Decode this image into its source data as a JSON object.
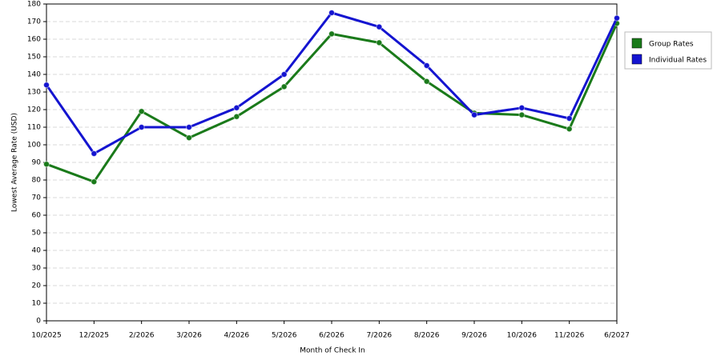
{
  "chart_data": {
    "type": "line",
    "x_label": "Month of Check In",
    "y_label": "Lowest Average Rate (USD)",
    "categories": [
      "10/2025",
      "12/2025",
      "2/2026",
      "3/2026",
      "4/2026",
      "5/2026",
      "6/2026",
      "7/2026",
      "8/2026",
      "9/2026",
      "10/2026",
      "11/2026",
      "6/2027"
    ],
    "series": [
      {
        "name": "Group Rates",
        "color": "#1a7a1a",
        "values": [
          89,
          79,
          119,
          104,
          116,
          133,
          163,
          158,
          136,
          118,
          117,
          109,
          169
        ]
      },
      {
        "name": "Individual Rates",
        "color": "#1414d0",
        "values": [
          134,
          95,
          110,
          110,
          121,
          140,
          175,
          167,
          145,
          117,
          121,
          115,
          172
        ]
      }
    ],
    "ylim": [
      0,
      180
    ],
    "yticks": [
      0,
      10,
      20,
      30,
      40,
      50,
      60,
      70,
      80,
      90,
      100,
      110,
      120,
      130,
      140,
      150,
      160,
      170,
      180
    ],
    "grid": true,
    "legend": "right"
  }
}
